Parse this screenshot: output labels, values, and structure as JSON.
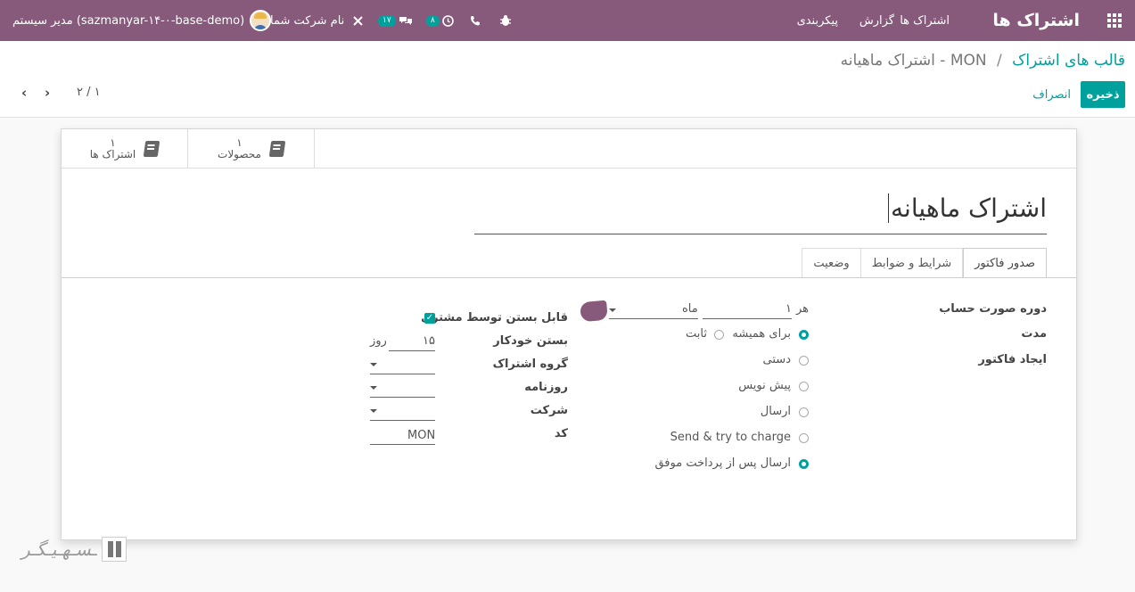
{
  "navbar": {
    "brand": "اشتراک ها",
    "menu": [
      "اشتراک ها",
      "گزارش",
      "پیکربندی"
    ],
    "activities_badge": "۸",
    "messages_badge": "۱۷",
    "company": "نام شرکت شما",
    "user": "مدیر سیستم (sazmanyar-۱۴-۰-base-demo)",
    "color": "#875a7b"
  },
  "breadcrumb": {
    "parent": "قالب های اشتراک",
    "separator": "/",
    "current": "MON - اشتراک ماهیانه"
  },
  "buttons": {
    "save": "ذخیره",
    "discard": "انصراف"
  },
  "pager": {
    "value": "۲ / ۱"
  },
  "stat_buttons": [
    {
      "count": "۱",
      "label": "محصولات"
    },
    {
      "count": "۱",
      "label": "اشتراک ها"
    }
  ],
  "title": "اشتراک ماهیانه",
  "tabs": [
    "صدور فاکتور",
    "شرایط و ضوابط",
    "وضعیت"
  ],
  "left_group": {
    "labels": [
      "دوره صورت حساب",
      "مدت",
      "ایجاد فاکتور"
    ],
    "period_prefix": "هر",
    "period_value": "۱",
    "period_unit": "ماه",
    "duration_options": [
      "برای همیشه",
      "ثابت"
    ],
    "invoice_options": [
      "دستی",
      "پیش نویس",
      "ارسال",
      "Send & try to charge",
      "ارسال پس از پرداخت موفق"
    ]
  },
  "right_group": {
    "labels": [
      "قابل بستن توسط مشتری",
      "بستن خودکار",
      "گروه اشتراک",
      "روزنامه",
      "شرکت",
      "کد"
    ],
    "auto_close_value": "۱۵",
    "auto_close_unit": "روز",
    "code_value": "MON"
  },
  "watermark": "ـسـهـیـگـر"
}
